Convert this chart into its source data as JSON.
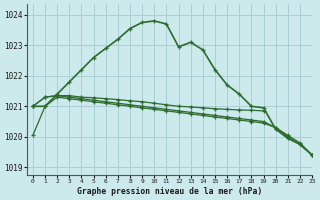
{
  "title": "Graphe pression niveau de la mer (hPa)",
  "bg_color": "#cce9ec",
  "grid_color": "#aacfd4",
  "line_color": "#2d6a2d",
  "xlim": [
    -0.5,
    23
  ],
  "ylim": [
    1018.75,
    1024.35
  ],
  "yticks": [
    1019,
    1020,
    1021,
    1022,
    1023,
    1024
  ],
  "xticks": [
    0,
    1,
    2,
    3,
    4,
    5,
    6,
    7,
    8,
    9,
    10,
    11,
    12,
    13,
    14,
    15,
    16,
    17,
    18,
    19,
    20,
    21,
    22,
    23
  ],
  "series": [
    {
      "data": [
        1021.0,
        1021.0,
        1021.4,
        1021.8,
        1022.2,
        1022.6,
        1022.9,
        1023.2,
        1023.55,
        1023.75,
        1023.8,
        1023.7,
        1022.95,
        1023.1,
        1022.85,
        1022.2,
        1021.7,
        1021.4,
        1021.0,
        1020.95,
        1020.25,
        1019.95,
        1019.75,
        1019.4
      ],
      "lw": 1.2
    },
    {
      "data": [
        1021.0,
        1021.3,
        1021.35,
        1021.35,
        1021.3,
        1021.28,
        1021.25,
        1021.22,
        1021.18,
        1021.15,
        1021.1,
        1021.05,
        1021.0,
        1020.98,
        1020.95,
        1020.92,
        1020.9,
        1020.88,
        1020.87,
        1020.85,
        null,
        null,
        null,
        null
      ],
      "lw": 0.9
    },
    {
      "data": [
        1021.0,
        1021.3,
        1021.35,
        1021.3,
        1021.25,
        1021.2,
        1021.15,
        1021.1,
        1021.05,
        1021.0,
        1020.95,
        1020.9,
        1020.85,
        1020.8,
        1020.75,
        1020.7,
        1020.65,
        1020.6,
        1020.55,
        1020.5,
        1020.3,
        1020.05,
        1019.8,
        1019.4
      ],
      "lw": 0.9
    },
    {
      "data": [
        1020.05,
        1021.0,
        1021.3,
        1021.25,
        1021.2,
        1021.15,
        1021.1,
        1021.05,
        1021.0,
        1020.95,
        1020.9,
        1020.85,
        1020.8,
        1020.75,
        1020.7,
        1020.65,
        1020.6,
        1020.55,
        1020.5,
        1020.45,
        1020.3,
        1020.0,
        1019.75,
        1019.4
      ],
      "lw": 0.9
    }
  ]
}
